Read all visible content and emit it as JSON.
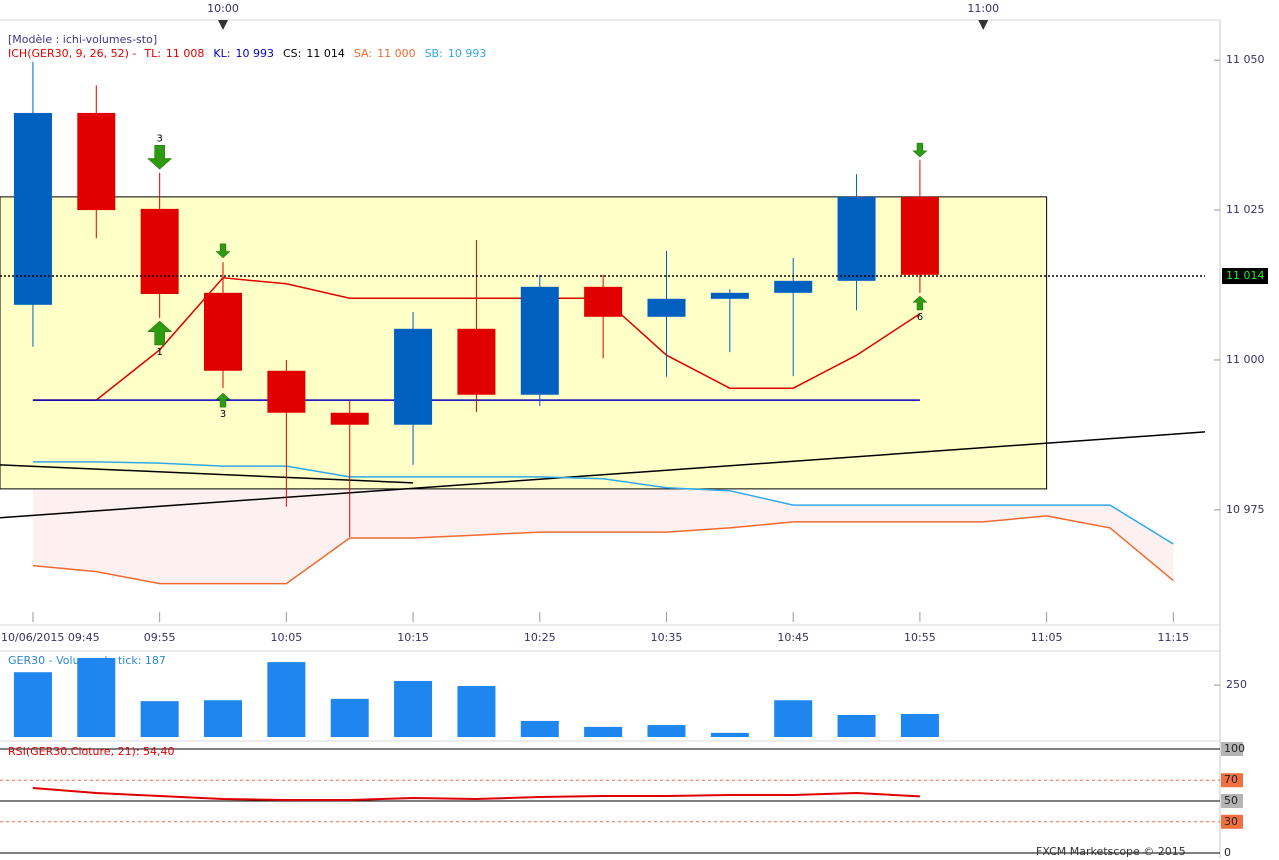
{
  "header": "[Modèle : ichi-volumes-sto]",
  "footer": "FXCM Marketscope © 2015",
  "chart_data": [
    {
      "type": "candlestick",
      "indicator_label": "ICH(GER30, 9, 26, 52) -",
      "x": [
        585,
        590,
        595,
        600,
        605,
        610,
        615,
        620,
        625,
        630,
        635,
        640,
        645,
        650,
        655
      ],
      "open": [
        11009.2,
        11041.2,
        11025.2,
        11011.2,
        10998.2,
        10991.2,
        10989.2,
        11005.2,
        10994.2,
        11012.2,
        11007.2,
        11010.2,
        11011.2,
        11013.2,
        11027.2
      ],
      "high": [
        11050,
        11045.8,
        11031.2,
        11016.3,
        11000,
        10993.2,
        11008,
        11020,
        11014.2,
        11014.2,
        11018.2,
        11011.8,
        11017,
        11031,
        11033.3
      ],
      "low": [
        11002.2,
        11020.3,
        11007,
        10995.3,
        10975.5,
        10970.5,
        10982.5,
        10991.3,
        10992.3,
        11000.3,
        10997.2,
        11001.3,
        10997.3,
        11008.3,
        11011.2
      ],
      "close": [
        11041.2,
        11025,
        11011,
        10998.2,
        10991.2,
        10989.2,
        11005.2,
        10994.2,
        11012.2,
        11007.2,
        11010.2,
        11011.2,
        11013.2,
        11027.2,
        11014.2
      ],
      "up_color": "#0060c0",
      "down_color": "#e00000",
      "series": [
        {
          "name": "TL:",
          "value": 11008,
          "value_label": "11 008",
          "color": "#e00000",
          "x": [
            585,
            590,
            595,
            600,
            605,
            610,
            615,
            620,
            625,
            630,
            635,
            640,
            645,
            650,
            655
          ],
          "values": [
            10993.3,
            10993.3,
            11001.7,
            11013.7,
            11012.7,
            11010.3,
            11010.3,
            11010.3,
            11010.3,
            11010.3,
            11000.8,
            10995.3,
            10995.3,
            11000.8,
            11007.7
          ]
        },
        {
          "name": "KL:",
          "value": 10993,
          "value_label": "10 993",
          "color": "#0000c0",
          "x": [
            585,
            590,
            595,
            600,
            605,
            610,
            615,
            620,
            625,
            630,
            635,
            640,
            645,
            650,
            655
          ],
          "values": [
            10993.3,
            10993.3,
            10993.3,
            10993.3,
            10993.3,
            10993.3,
            10993.3,
            10993.3,
            10993.3,
            10993.3,
            10993.3,
            10993.3,
            10993.3,
            10993.3,
            10993.3
          ]
        },
        {
          "name": "CS:",
          "value": 11014,
          "value_label": "11 014",
          "color": "#000000",
          "x": [
            582.4,
            615
          ],
          "values": [
            10982.5,
            10979.5
          ]
        },
        {
          "name": "SA:",
          "value": 11000,
          "value_label": "11 000",
          "color": "#f06a30",
          "x": [
            585,
            590,
            595,
            600,
            605,
            610,
            615,
            620,
            625,
            630,
            635,
            640,
            645,
            650,
            655,
            660,
            665,
            670,
            675
          ],
          "values": [
            10965.7,
            10964.7,
            10962.7,
            10962.7,
            10962.7,
            10970.3,
            10970.3,
            10970.8,
            10971.3,
            10971.3,
            10971.3,
            10972,
            10973,
            10973,
            10973,
            10973,
            10974,
            10972,
            10963.2
          ]
        },
        {
          "name": "SB:",
          "value": 10993,
          "value_label": "10 993",
          "color": "#30a8e8",
          "x": [
            585,
            590,
            595,
            600,
            605,
            610,
            615,
            620,
            625,
            630,
            635,
            640,
            645,
            650,
            655,
            660,
            665,
            670,
            675
          ],
          "values": [
            10983,
            10983,
            10982.8,
            10982.3,
            10982.3,
            10980.5,
            10980.5,
            10980.5,
            10980.5,
            10980.2,
            10978.7,
            10978.2,
            10975.8,
            10975.8,
            10975.8,
            10975.8,
            10975.8,
            10975.8,
            10969.3
          ]
        }
      ],
      "cloud_color": "#fdf0f0",
      "trendline": {
        "x": [
          582.4,
          677.5
        ],
        "values": [
          10973.7,
          10988
        ],
        "color": "#000000"
      },
      "box": {
        "x": [
          582.4,
          665
        ],
        "y": [
          10978.5,
          11027.2
        ],
        "color": "#ffffc8"
      },
      "last_price": {
        "value": 11014,
        "label": "11 014"
      },
      "signals": [
        {
          "x": 595,
          "y": 11033.8,
          "dir": "down",
          "size": "large",
          "label": "3"
        },
        {
          "x": 595,
          "y": 11004.5,
          "dir": "up",
          "size": "large",
          "label": "1"
        },
        {
          "x": 600,
          "y": 11018.2,
          "dir": "down",
          "size": "small"
        },
        {
          "x": 600,
          "y": 10993.3,
          "dir": "up",
          "size": "small",
          "label": "3"
        },
        {
          "x": 655,
          "y": 11035,
          "dir": "down",
          "size": "small"
        },
        {
          "x": 655,
          "y": 11009.5,
          "dir": "up",
          "size": "small",
          "label": "6"
        }
      ],
      "signal_color": "#2e9a12",
      "xlim": [
        582.4,
        677.5
      ],
      "ylim": [
        10958.3,
        11056.7
      ],
      "xticks": [
        {
          "value": 585,
          "label": "10/06/2015 09:45"
        },
        {
          "value": 595,
          "label": "09:55"
        },
        {
          "value": 605,
          "label": "10:05"
        },
        {
          "value": 615,
          "label": "10:15"
        },
        {
          "value": 625,
          "label": "10:25"
        },
        {
          "value": 635,
          "label": "10:35"
        },
        {
          "value": 645,
          "label": "10:45"
        },
        {
          "value": 655,
          "label": "10:55"
        },
        {
          "value": 665,
          "label": "11:05"
        },
        {
          "value": 675,
          "label": "11:15"
        }
      ],
      "top_ticks": [
        {
          "value": 600,
          "label": "10:00"
        },
        {
          "value": 660,
          "label": "11:00"
        }
      ],
      "yticks": [
        {
          "value": 10975,
          "label": "10 975"
        },
        {
          "value": 11000,
          "label": "11 000"
        },
        {
          "value": 11025,
          "label": "11 025"
        },
        {
          "value": 11050,
          "label": "11 050"
        }
      ]
    },
    {
      "type": "bar",
      "title": "GER30 - Volume du tick: 187",
      "color": "#1e86ee",
      "x": [
        585,
        590,
        595,
        600,
        605,
        610,
        615,
        620,
        625,
        630,
        635,
        640,
        645,
        650,
        655
      ],
      "values": [
        278,
        309,
        215,
        217,
        300,
        220,
        259,
        248,
        172,
        159,
        163,
        146,
        217,
        185,
        187
      ],
      "xlim": [
        582.4,
        677.5
      ],
      "ylim": [
        137,
        322
      ],
      "yticks": [
        250
      ]
    },
    {
      "type": "line",
      "title": "RSI(GER30.Cloture, 21): 54,40",
      "color": "#e00000",
      "x": [
        585,
        590,
        595,
        600,
        605,
        610,
        615,
        620,
        625,
        630,
        635,
        640,
        645,
        650,
        655
      ],
      "values": [
        62.5,
        57.7,
        54.8,
        51.9,
        51,
        51,
        52.9,
        51.9,
        53.8,
        54.8,
        54.8,
        55.8,
        55.8,
        57.7,
        54.4
      ],
      "xlim": [
        582.4,
        677.5
      ],
      "ylim": [
        0,
        100
      ],
      "yticks": [
        0,
        30,
        50,
        70,
        100
      ],
      "tick_colors": [
        "#ffffff",
        "#f07040",
        "#b4b4b4",
        "#f07040",
        "#b4b4b4"
      ]
    }
  ]
}
